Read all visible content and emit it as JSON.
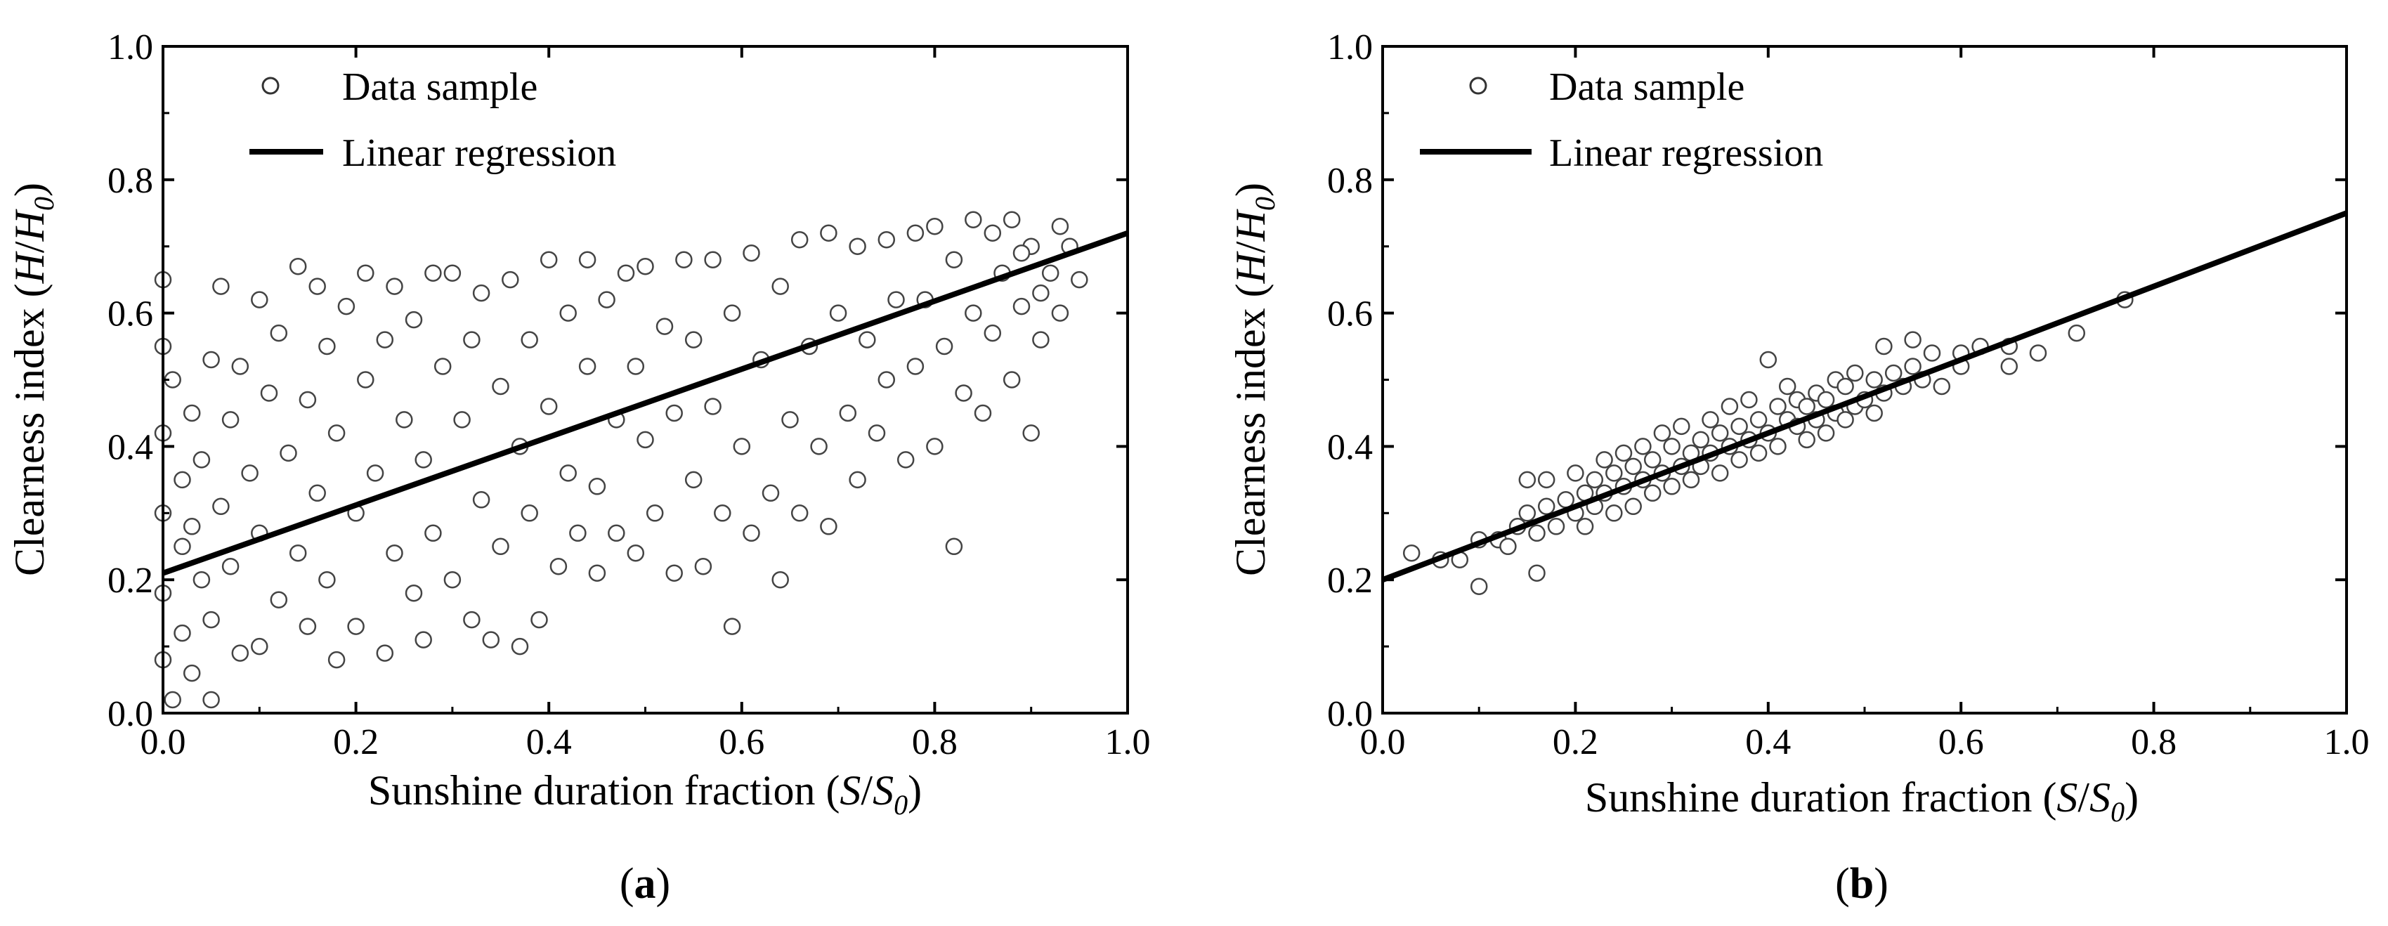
{
  "chart_data": [
    {
      "type": "scatter",
      "panel_label": "a",
      "xlabel_main": "Sunshine duration fraction (",
      "xlabel_var": "S",
      "xlabel_sep": "/",
      "xlabel_var2": "S",
      "xlabel_sub": "0",
      "xlabel_end": ")",
      "ylabel_main": "Clearness index (",
      "ylabel_var": "H",
      "ylabel_sep": "/",
      "ylabel_var2": "H",
      "ylabel_sub": "0",
      "ylabel_end": ")",
      "xlim": [
        0,
        1
      ],
      "ylim": [
        0,
        1
      ],
      "xticks": [
        "0.0",
        "0.2",
        "0.4",
        "0.6",
        "0.8",
        "1.0"
      ],
      "yticks": [
        "0.0",
        "0.2",
        "0.4",
        "0.6",
        "0.8",
        "1.0"
      ],
      "legend": [
        "Data sample",
        "Linear regression"
      ],
      "legend_position": "top-left",
      "regression": {
        "intercept": 0.21,
        "slope": 0.51
      },
      "series": [
        {
          "name": "Data sample",
          "points": [
            [
              0.0,
              0.65
            ],
            [
              0.0,
              0.55
            ],
            [
              0.0,
              0.42
            ],
            [
              0.0,
              0.3
            ],
            [
              0.0,
              0.18
            ],
            [
              0.0,
              0.08
            ],
            [
              0.01,
              0.5
            ],
            [
              0.01,
              0.02
            ],
            [
              0.02,
              0.35
            ],
            [
              0.02,
              0.25
            ],
            [
              0.02,
              0.12
            ],
            [
              0.03,
              0.45
            ],
            [
              0.03,
              0.28
            ],
            [
              0.03,
              0.06
            ],
            [
              0.04,
              0.38
            ],
            [
              0.04,
              0.2
            ],
            [
              0.05,
              0.53
            ],
            [
              0.05,
              0.14
            ],
            [
              0.05,
              0.02
            ],
            [
              0.06,
              0.64
            ],
            [
              0.06,
              0.31
            ],
            [
              0.07,
              0.44
            ],
            [
              0.07,
              0.22
            ],
            [
              0.08,
              0.52
            ],
            [
              0.08,
              0.09
            ],
            [
              0.09,
              0.36
            ],
            [
              0.1,
              0.62
            ],
            [
              0.1,
              0.27
            ],
            [
              0.1,
              0.1
            ],
            [
              0.11,
              0.48
            ],
            [
              0.12,
              0.17
            ],
            [
              0.12,
              0.57
            ],
            [
              0.13,
              0.39
            ],
            [
              0.14,
              0.67
            ],
            [
              0.14,
              0.24
            ],
            [
              0.15,
              0.47
            ],
            [
              0.15,
              0.13
            ],
            [
              0.16,
              0.64
            ],
            [
              0.16,
              0.33
            ],
            [
              0.17,
              0.55
            ],
            [
              0.17,
              0.2
            ],
            [
              0.18,
              0.42
            ],
            [
              0.18,
              0.08
            ],
            [
              0.19,
              0.61
            ],
            [
              0.2,
              0.3
            ],
            [
              0.2,
              0.13
            ],
            [
              0.21,
              0.66
            ],
            [
              0.21,
              0.5
            ],
            [
              0.22,
              0.36
            ],
            [
              0.23,
              0.09
            ],
            [
              0.23,
              0.56
            ],
            [
              0.24,
              0.24
            ],
            [
              0.24,
              0.64
            ],
            [
              0.25,
              0.44
            ],
            [
              0.26,
              0.18
            ],
            [
              0.26,
              0.59
            ],
            [
              0.27,
              0.11
            ],
            [
              0.27,
              0.38
            ],
            [
              0.28,
              0.66
            ],
            [
              0.28,
              0.27
            ],
            [
              0.29,
              0.52
            ],
            [
              0.3,
              0.2
            ],
            [
              0.3,
              0.66
            ],
            [
              0.31,
              0.44
            ],
            [
              0.32,
              0.14
            ],
            [
              0.32,
              0.56
            ],
            [
              0.33,
              0.32
            ],
            [
              0.33,
              0.63
            ],
            [
              0.34,
              0.11
            ],
            [
              0.35,
              0.49
            ],
            [
              0.35,
              0.25
            ],
            [
              0.36,
              0.65
            ],
            [
              0.37,
              0.4
            ],
            [
              0.37,
              0.1
            ],
            [
              0.38,
              0.56
            ],
            [
              0.38,
              0.3
            ],
            [
              0.39,
              0.14
            ],
            [
              0.4,
              0.68
            ],
            [
              0.4,
              0.46
            ],
            [
              0.41,
              0.22
            ],
            [
              0.42,
              0.6
            ],
            [
              0.42,
              0.36
            ],
            [
              0.43,
              0.27
            ],
            [
              0.44,
              0.68
            ],
            [
              0.44,
              0.52
            ],
            [
              0.45,
              0.34
            ],
            [
              0.45,
              0.21
            ],
            [
              0.46,
              0.62
            ],
            [
              0.47,
              0.44
            ],
            [
              0.47,
              0.27
            ],
            [
              0.48,
              0.66
            ],
            [
              0.49,
              0.52
            ],
            [
              0.49,
              0.24
            ],
            [
              0.5,
              0.41
            ],
            [
              0.5,
              0.67
            ],
            [
              0.51,
              0.3
            ],
            [
              0.52,
              0.58
            ],
            [
              0.53,
              0.45
            ],
            [
              0.53,
              0.21
            ],
            [
              0.54,
              0.68
            ],
            [
              0.55,
              0.35
            ],
            [
              0.55,
              0.56
            ],
            [
              0.56,
              0.22
            ],
            [
              0.57,
              0.68
            ],
            [
              0.57,
              0.46
            ],
            [
              0.58,
              0.3
            ],
            [
              0.59,
              0.13
            ],
            [
              0.59,
              0.6
            ],
            [
              0.6,
              0.4
            ],
            [
              0.61,
              0.69
            ],
            [
              0.61,
              0.27
            ],
            [
              0.62,
              0.53
            ],
            [
              0.63,
              0.33
            ],
            [
              0.64,
              0.2
            ],
            [
              0.64,
              0.64
            ],
            [
              0.65,
              0.44
            ],
            [
              0.66,
              0.71
            ],
            [
              0.66,
              0.3
            ],
            [
              0.67,
              0.55
            ],
            [
              0.68,
              0.4
            ],
            [
              0.69,
              0.72
            ],
            [
              0.69,
              0.28
            ],
            [
              0.7,
              0.6
            ],
            [
              0.71,
              0.45
            ],
            [
              0.72,
              0.7
            ],
            [
              0.72,
              0.35
            ],
            [
              0.73,
              0.56
            ],
            [
              0.74,
              0.42
            ],
            [
              0.75,
              0.71
            ],
            [
              0.75,
              0.5
            ],
            [
              0.76,
              0.62
            ],
            [
              0.77,
              0.38
            ],
            [
              0.78,
              0.72
            ],
            [
              0.78,
              0.52
            ],
            [
              0.79,
              0.62
            ],
            [
              0.8,
              0.4
            ],
            [
              0.8,
              0.73
            ],
            [
              0.81,
              0.55
            ],
            [
              0.82,
              0.25
            ],
            [
              0.82,
              0.68
            ],
            [
              0.83,
              0.48
            ],
            [
              0.84,
              0.74
            ],
            [
              0.84,
              0.6
            ],
            [
              0.85,
              0.45
            ],
            [
              0.86,
              0.72
            ],
            [
              0.86,
              0.57
            ],
            [
              0.87,
              0.66
            ],
            [
              0.88,
              0.5
            ],
            [
              0.88,
              0.74
            ],
            [
              0.89,
              0.61
            ],
            [
              0.9,
              0.42
            ],
            [
              0.9,
              0.7
            ],
            [
              0.91,
              0.56
            ],
            [
              0.92,
              0.66
            ],
            [
              0.93,
              0.6
            ],
            [
              0.94,
              0.7
            ],
            [
              0.95,
              0.65
            ],
            [
              0.93,
              0.73
            ],
            [
              0.91,
              0.63
            ],
            [
              0.89,
              0.69
            ]
          ]
        }
      ]
    },
    {
      "type": "scatter",
      "panel_label": "b",
      "xlabel_main": "Sunshine duration fraction (",
      "xlabel_var": "S",
      "xlabel_sep": "/",
      "xlabel_var2": "S",
      "xlabel_sub": "0",
      "xlabel_end": ")",
      "ylabel_main": "Clearness index (",
      "ylabel_var": "H",
      "ylabel_sep": "/",
      "ylabel_var2": "H",
      "ylabel_sub": "0",
      "ylabel_end": ")",
      "xlim": [
        0,
        1
      ],
      "ylim": [
        0,
        1
      ],
      "xticks": [
        "0.0",
        "0.2",
        "0.4",
        "0.6",
        "0.8",
        "1.0"
      ],
      "yticks": [
        "0.0",
        "0.2",
        "0.4",
        "0.6",
        "0.8",
        "1.0"
      ],
      "legend": [
        "Data sample",
        "Linear regression"
      ],
      "legend_position": "top-left",
      "regression": {
        "intercept": 0.2,
        "slope": 0.55
      },
      "series": [
        {
          "name": "Data sample",
          "points": [
            [
              0.03,
              0.24
            ],
            [
              0.06,
              0.23
            ],
            [
              0.08,
              0.23
            ],
            [
              0.1,
              0.26
            ],
            [
              0.1,
              0.19
            ],
            [
              0.12,
              0.26
            ],
            [
              0.13,
              0.25
            ],
            [
              0.14,
              0.28
            ],
            [
              0.15,
              0.35
            ],
            [
              0.15,
              0.3
            ],
            [
              0.16,
              0.21
            ],
            [
              0.16,
              0.27
            ],
            [
              0.17,
              0.31
            ],
            [
              0.17,
              0.35
            ],
            [
              0.18,
              0.28
            ],
            [
              0.19,
              0.32
            ],
            [
              0.2,
              0.3
            ],
            [
              0.2,
              0.36
            ],
            [
              0.21,
              0.33
            ],
            [
              0.21,
              0.28
            ],
            [
              0.22,
              0.35
            ],
            [
              0.22,
              0.31
            ],
            [
              0.23,
              0.38
            ],
            [
              0.23,
              0.33
            ],
            [
              0.24,
              0.3
            ],
            [
              0.24,
              0.36
            ],
            [
              0.25,
              0.34
            ],
            [
              0.25,
              0.39
            ],
            [
              0.26,
              0.31
            ],
            [
              0.26,
              0.37
            ],
            [
              0.27,
              0.4
            ],
            [
              0.27,
              0.35
            ],
            [
              0.28,
              0.33
            ],
            [
              0.28,
              0.38
            ],
            [
              0.29,
              0.42
            ],
            [
              0.29,
              0.36
            ],
            [
              0.3,
              0.34
            ],
            [
              0.3,
              0.4
            ],
            [
              0.31,
              0.37
            ],
            [
              0.31,
              0.43
            ],
            [
              0.32,
              0.39
            ],
            [
              0.32,
              0.35
            ],
            [
              0.33,
              0.41
            ],
            [
              0.33,
              0.37
            ],
            [
              0.34,
              0.44
            ],
            [
              0.34,
              0.39
            ],
            [
              0.35,
              0.42
            ],
            [
              0.35,
              0.36
            ],
            [
              0.36,
              0.4
            ],
            [
              0.36,
              0.46
            ],
            [
              0.37,
              0.43
            ],
            [
              0.37,
              0.38
            ],
            [
              0.38,
              0.41
            ],
            [
              0.38,
              0.47
            ],
            [
              0.39,
              0.44
            ],
            [
              0.39,
              0.39
            ],
            [
              0.4,
              0.53
            ],
            [
              0.4,
              0.42
            ],
            [
              0.41,
              0.46
            ],
            [
              0.41,
              0.4
            ],
            [
              0.42,
              0.44
            ],
            [
              0.42,
              0.49
            ],
            [
              0.43,
              0.43
            ],
            [
              0.43,
              0.47
            ],
            [
              0.44,
              0.41
            ],
            [
              0.44,
              0.46
            ],
            [
              0.45,
              0.48
            ],
            [
              0.45,
              0.44
            ],
            [
              0.46,
              0.42
            ],
            [
              0.46,
              0.47
            ],
            [
              0.47,
              0.5
            ],
            [
              0.47,
              0.45
            ],
            [
              0.48,
              0.44
            ],
            [
              0.48,
              0.49
            ],
            [
              0.49,
              0.51
            ],
            [
              0.49,
              0.46
            ],
            [
              0.5,
              0.47
            ],
            [
              0.51,
              0.5
            ],
            [
              0.51,
              0.45
            ],
            [
              0.52,
              0.55
            ],
            [
              0.52,
              0.48
            ],
            [
              0.53,
              0.51
            ],
            [
              0.54,
              0.49
            ],
            [
              0.55,
              0.56
            ],
            [
              0.55,
              0.52
            ],
            [
              0.56,
              0.5
            ],
            [
              0.57,
              0.54
            ],
            [
              0.58,
              0.49
            ],
            [
              0.6,
              0.54
            ],
            [
              0.6,
              0.52
            ],
            [
              0.62,
              0.55
            ],
            [
              0.65,
              0.55
            ],
            [
              0.65,
              0.52
            ],
            [
              0.68,
              0.54
            ],
            [
              0.72,
              0.57
            ],
            [
              0.77,
              0.62
            ]
          ]
        }
      ]
    }
  ]
}
